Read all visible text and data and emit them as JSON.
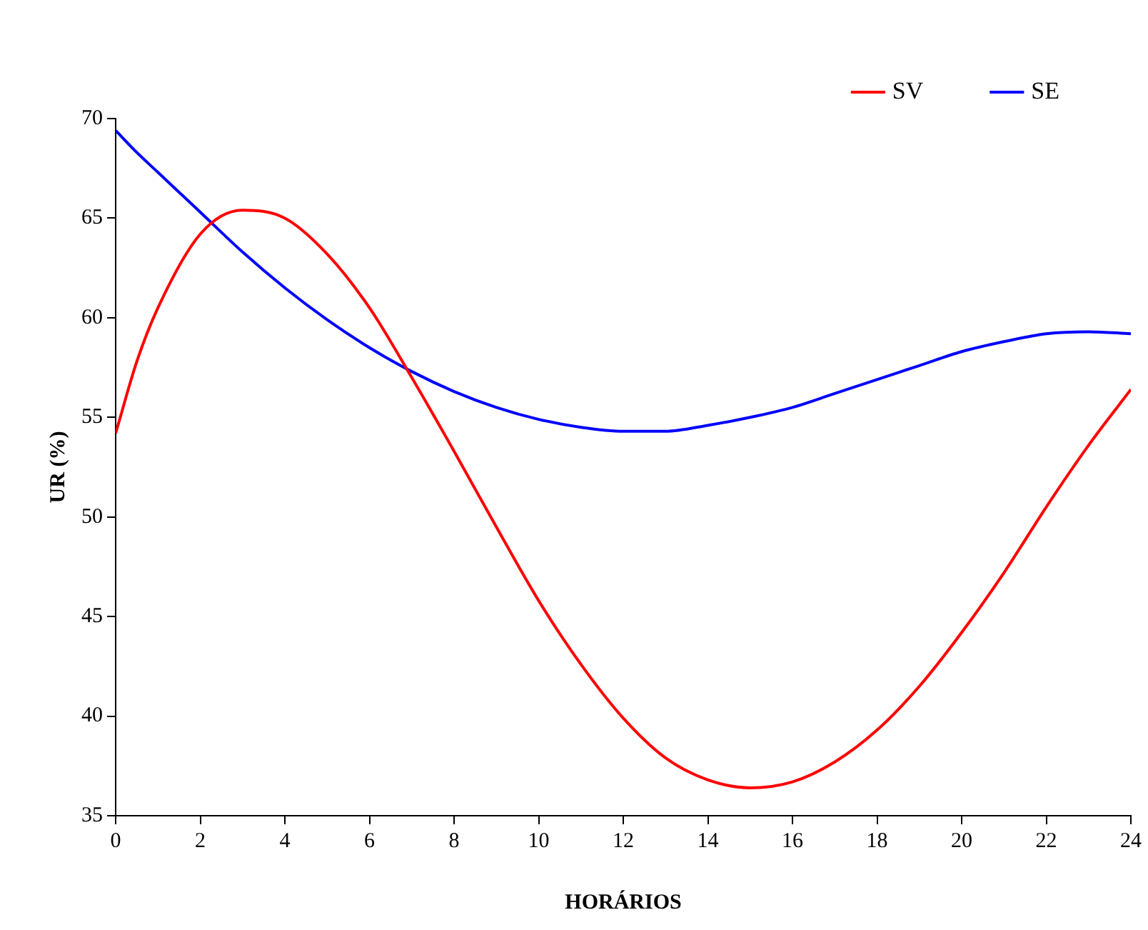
{
  "chart_data": {
    "type": "line",
    "xlabel": "HORÁRIOS",
    "ylabel": "UR (%)",
    "x": [
      0,
      0.5,
      1,
      2,
      3,
      4,
      5,
      6,
      7,
      8,
      9,
      10,
      11,
      12,
      13,
      14,
      15,
      16,
      17,
      18,
      19,
      20,
      21,
      22,
      23,
      24
    ],
    "series": [
      {
        "name": "SV",
        "color": "#ff0000",
        "values": [
          54.2,
          57.8,
          60.5,
          64.2,
          65.4,
          65.0,
          63.2,
          60.5,
          57.0,
          53.3,
          49.5,
          45.8,
          42.6,
          39.9,
          37.9,
          36.8,
          36.4,
          36.7,
          37.7,
          39.3,
          41.5,
          44.2,
          47.2,
          50.5,
          53.6,
          56.4
        ]
      },
      {
        "name": "SE",
        "color": "#0000ff",
        "values": [
          69.4,
          68.3,
          67.3,
          65.3,
          63.3,
          61.5,
          59.9,
          58.5,
          57.3,
          56.3,
          55.5,
          54.9,
          54.5,
          54.3,
          54.3,
          54.6,
          55.0,
          55.5,
          56.2,
          56.9,
          57.6,
          58.3,
          58.8,
          59.2,
          59.3,
          59.2
        ]
      }
    ],
    "xlim": [
      0,
      24
    ],
    "xticks": [
      0,
      2,
      4,
      6,
      8,
      10,
      12,
      14,
      16,
      18,
      20,
      22,
      24
    ],
    "ylim": [
      35,
      70
    ],
    "yticks": [
      35,
      40,
      45,
      50,
      55,
      60,
      65,
      70
    ],
    "grid": false,
    "legend": "top right",
    "marker": "none",
    "line_style": "solid"
  }
}
